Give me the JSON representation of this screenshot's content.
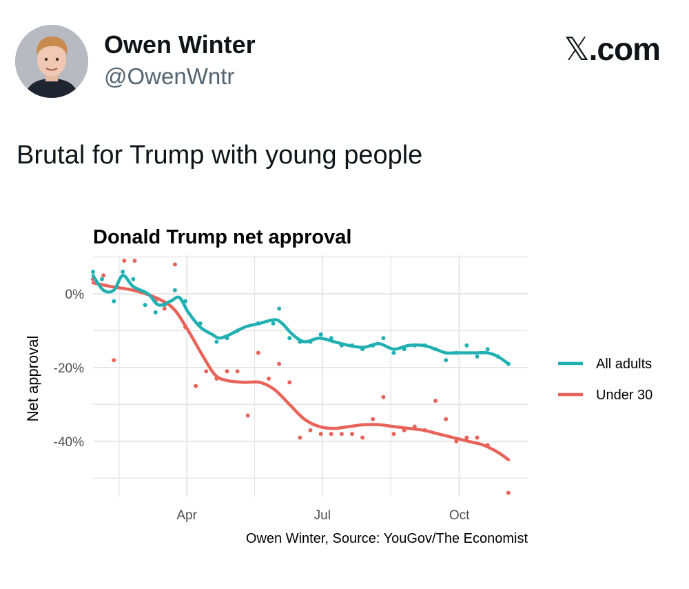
{
  "tweet": {
    "author_name": "Owen Winter",
    "author_handle": "@OwenWntr",
    "brand": "X.com",
    "text": "Brutal for Trump with young people"
  },
  "colors": {
    "all_adults": "#21b0b2",
    "under_30": "#e8635a",
    "grid": "#e6e6e6"
  },
  "chart_data": {
    "type": "line",
    "title": "Donald Trump net approval",
    "ylabel": "Net approval",
    "xlabel": "",
    "caption": "Owen Winter, Source: YouGov/The Economist",
    "ylim": [
      -55,
      10.5
    ],
    "xlim": [
      28,
      320
    ],
    "y_ticks": [
      {
        "v": 0,
        "label": "0%"
      },
      {
        "v": -20,
        "label": "-20%"
      },
      {
        "v": -40,
        "label": "-40%"
      }
    ],
    "x_ticks": [
      {
        "v": 91,
        "label": "Apr"
      },
      {
        "v": 182,
        "label": "Jul"
      },
      {
        "v": 274,
        "label": "Oct"
      }
    ],
    "legend": [
      "All adults",
      "Under 30"
    ],
    "series": [
      {
        "name": "All adults",
        "points": [
          [
            28,
            6
          ],
          [
            34,
            4
          ],
          [
            42,
            -2
          ],
          [
            48,
            6
          ],
          [
            55,
            4
          ],
          [
            63,
            -3
          ],
          [
            70,
            -5
          ],
          [
            76,
            -3
          ],
          [
            83,
            1
          ],
          [
            90,
            -2
          ],
          [
            100,
            -8
          ],
          [
            111,
            -13
          ],
          [
            118,
            -12
          ],
          [
            125,
            -10
          ],
          [
            139,
            -8
          ],
          [
            149,
            -8
          ],
          [
            153,
            -4
          ],
          [
            160,
            -12
          ],
          [
            167,
            -13
          ],
          [
            174,
            -13
          ],
          [
            181,
            -11
          ],
          [
            188,
            -12
          ],
          [
            195,
            -14
          ],
          [
            202,
            -14
          ],
          [
            209,
            -15
          ],
          [
            216,
            -14
          ],
          [
            223,
            -12
          ],
          [
            230,
            -16
          ],
          [
            237,
            -15
          ],
          [
            244,
            -14
          ],
          [
            251,
            -14
          ],
          [
            258,
            -15
          ],
          [
            265,
            -18
          ],
          [
            272,
            -16
          ],
          [
            279,
            -14
          ],
          [
            286,
            -17
          ],
          [
            293,
            -15
          ],
          [
            300,
            -17
          ],
          [
            307,
            -19
          ]
        ],
        "smooth": [
          [
            28,
            5
          ],
          [
            35,
            1
          ],
          [
            42,
            1
          ],
          [
            48,
            5
          ],
          [
            55,
            2
          ],
          [
            65,
            0
          ],
          [
            72,
            -3
          ],
          [
            80,
            -2
          ],
          [
            86,
            -1
          ],
          [
            92,
            -5
          ],
          [
            100,
            -9
          ],
          [
            108,
            -11
          ],
          [
            113,
            -12
          ],
          [
            120,
            -11
          ],
          [
            130,
            -9
          ],
          [
            140,
            -8
          ],
          [
            150,
            -7
          ],
          [
            155,
            -8
          ],
          [
            162,
            -11
          ],
          [
            170,
            -13
          ],
          [
            180,
            -12
          ],
          [
            190,
            -13
          ],
          [
            200,
            -14
          ],
          [
            210,
            -14.5
          ],
          [
            220,
            -13.5
          ],
          [
            230,
            -15
          ],
          [
            240,
            -14
          ],
          [
            250,
            -14
          ],
          [
            258,
            -15
          ],
          [
            265,
            -16
          ],
          [
            272,
            -16
          ],
          [
            280,
            -16
          ],
          [
            286,
            -16
          ],
          [
            293,
            -16
          ],
          [
            300,
            -17
          ],
          [
            307,
            -19
          ]
        ]
      },
      {
        "name": "Under 30",
        "points": [
          [
            28,
            4
          ],
          [
            35,
            5
          ],
          [
            42,
            -18
          ],
          [
            49,
            9
          ],
          [
            56,
            9
          ],
          [
            70,
            -2
          ],
          [
            76,
            -4
          ],
          [
            83,
            8
          ],
          [
            90,
            -9
          ],
          [
            97,
            -25
          ],
          [
            104,
            -21
          ],
          [
            111,
            -23
          ],
          [
            118,
            -21
          ],
          [
            125,
            -21
          ],
          [
            132,
            -33
          ],
          [
            139,
            -16
          ],
          [
            146,
            -23
          ],
          [
            153,
            -19
          ],
          [
            160,
            -24
          ],
          [
            167,
            -39
          ],
          [
            174,
            -37
          ],
          [
            181,
            -38
          ],
          [
            188,
            -38
          ],
          [
            195,
            -38
          ],
          [
            202,
            -38
          ],
          [
            209,
            -39
          ],
          [
            216,
            -34
          ],
          [
            223,
            -28
          ],
          [
            230,
            -38
          ],
          [
            237,
            -37
          ],
          [
            244,
            -36
          ],
          [
            251,
            -37
          ],
          [
            258,
            -29
          ],
          [
            265,
            -34
          ],
          [
            272,
            -40
          ],
          [
            279,
            -39
          ],
          [
            286,
            -39
          ],
          [
            293,
            -41
          ],
          [
            307,
            -54
          ]
        ],
        "smooth": [
          [
            28,
            3
          ],
          [
            40,
            2
          ],
          [
            55,
            1
          ],
          [
            70,
            -1
          ],
          [
            82,
            -4
          ],
          [
            92,
            -10
          ],
          [
            102,
            -17
          ],
          [
            110,
            -22
          ],
          [
            118,
            -23.5
          ],
          [
            130,
            -24
          ],
          [
            140,
            -24
          ],
          [
            150,
            -26
          ],
          [
            160,
            -30
          ],
          [
            170,
            -34
          ],
          [
            180,
            -36
          ],
          [
            190,
            -36.5
          ],
          [
            200,
            -36
          ],
          [
            210,
            -35.5
          ],
          [
            220,
            -35.5
          ],
          [
            230,
            -36
          ],
          [
            240,
            -36.5
          ],
          [
            250,
            -37
          ],
          [
            260,
            -38
          ],
          [
            270,
            -39
          ],
          [
            280,
            -40
          ],
          [
            290,
            -41
          ],
          [
            300,
            -43
          ],
          [
            307,
            -45
          ]
        ]
      }
    ]
  }
}
